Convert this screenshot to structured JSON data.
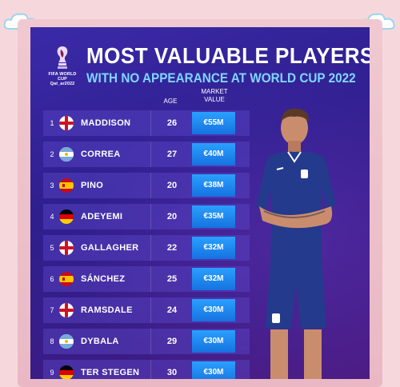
{
  "header": {
    "logo_text": "FIFA WORLD CUP Qat_ar2022",
    "title": "MOST VALUABLE PLAYERS",
    "subtitle": "WITH NO APPEARANCE AT WORLD CUP 2022"
  },
  "columns": {
    "age": "AGE",
    "market_value_line1": "MARKET",
    "market_value_line2": "VALUE"
  },
  "players": [
    {
      "rank": "1",
      "flag": "england",
      "name": "MADDISON",
      "age": "26",
      "value": "€55M"
    },
    {
      "rank": "2",
      "flag": "argentina",
      "name": "CORREA",
      "age": "27",
      "value": "€40M"
    },
    {
      "rank": "3",
      "flag": "spain",
      "name": "PINO",
      "age": "20",
      "value": "€38M"
    },
    {
      "rank": "4",
      "flag": "germany",
      "name": "ADEYEMI",
      "age": "20",
      "value": "€35M"
    },
    {
      "rank": "5",
      "flag": "england",
      "name": "GALLAGHER",
      "age": "22",
      "value": "€32M"
    },
    {
      "rank": "6",
      "flag": "spain",
      "name": "SÁNCHEZ",
      "age": "25",
      "value": "€32M"
    },
    {
      "rank": "7",
      "flag": "england",
      "name": "RAMSDALE",
      "age": "24",
      "value": "€30M"
    },
    {
      "rank": "8",
      "flag": "argentina",
      "name": "DYBALA",
      "age": "29",
      "value": "€30M"
    },
    {
      "rank": "9",
      "flag": "germany",
      "name": "TER STEGEN",
      "age": "30",
      "value": "€30M"
    }
  ],
  "colors": {
    "card_bg": "#2e1f8f",
    "value_badge": "#1f8cf0",
    "subtitle": "#7fd6ff"
  }
}
